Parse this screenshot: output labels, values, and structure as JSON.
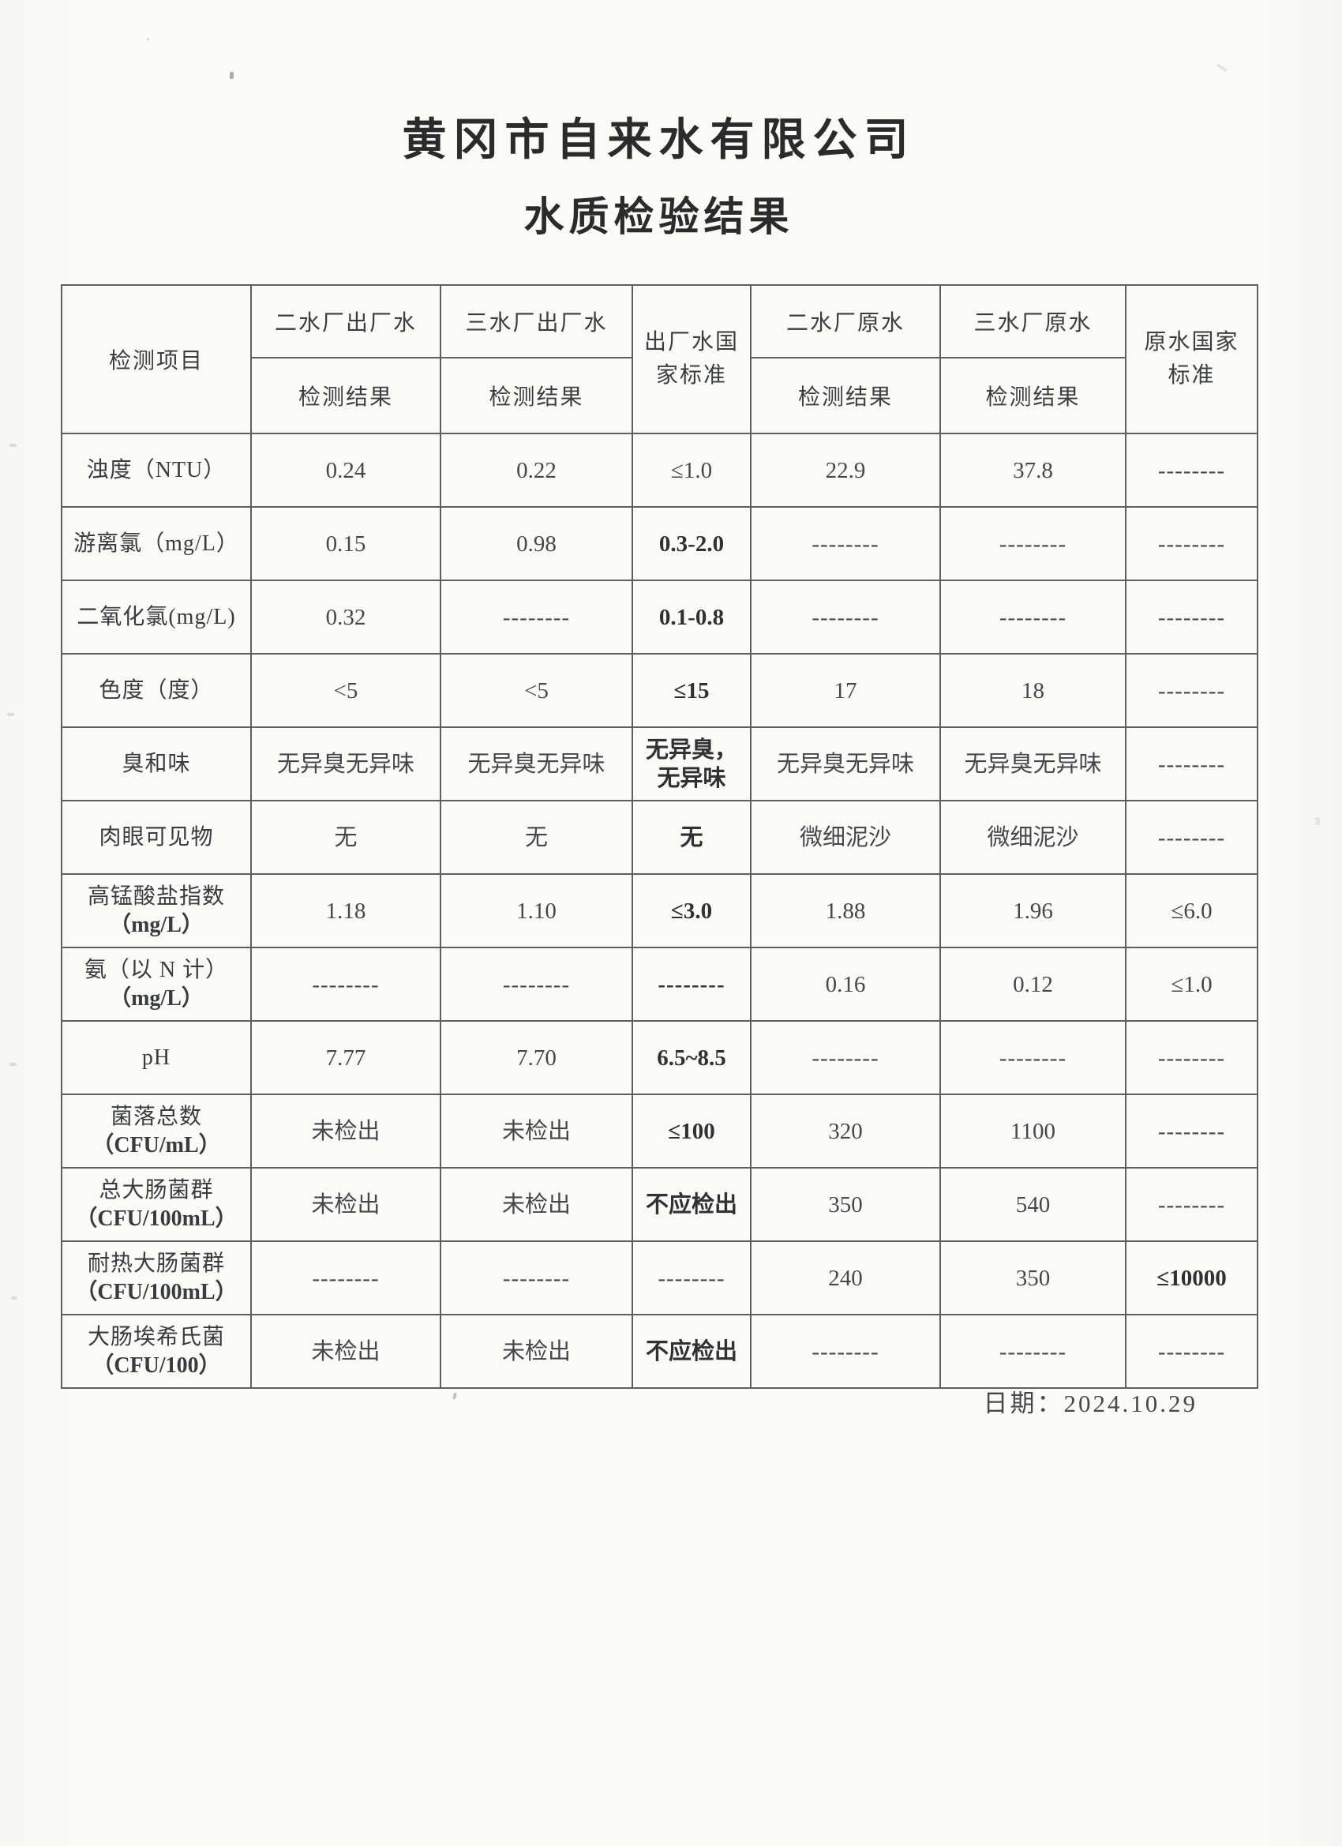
{
  "document": {
    "title_line1": "黄冈市自来水有限公司",
    "title_line2": "水质检验结果",
    "date": "日期：2024.10.29"
  },
  "table": {
    "item_header": "检测项目",
    "result_subheader": "检测结果",
    "columns": {
      "plant2_out": "二水厂出厂水",
      "plant3_out": "三水厂出厂水",
      "out_standard_lines": [
        "出厂水国",
        "家标准"
      ],
      "plant2_raw": "二水厂原水",
      "plant3_raw": "三水厂原水",
      "raw_standard_lines": [
        "原水国家",
        "标准"
      ]
    },
    "rows": [
      {
        "label_lines": [
          "浊度（NTU）"
        ],
        "cells": [
          {
            "lines": [
              "0.24"
            ],
            "bold": false
          },
          {
            "lines": [
              "0.22"
            ],
            "bold": false
          },
          {
            "lines": [
              "≤1.0"
            ],
            "bold": false
          },
          {
            "lines": [
              "22.9"
            ],
            "bold": false
          },
          {
            "lines": [
              "37.8"
            ],
            "bold": false
          },
          {
            "lines": [
              "--------"
            ],
            "bold": false
          }
        ]
      },
      {
        "label_lines": [
          "游离氯（mg/L）"
        ],
        "cells": [
          {
            "lines": [
              "0.15"
            ],
            "bold": false
          },
          {
            "lines": [
              "0.98"
            ],
            "bold": false
          },
          {
            "lines": [
              "0.3-2.0"
            ],
            "bold": true
          },
          {
            "lines": [
              "--------"
            ],
            "bold": false
          },
          {
            "lines": [
              "--------"
            ],
            "bold": false
          },
          {
            "lines": [
              "--------"
            ],
            "bold": false
          }
        ]
      },
      {
        "label_lines": [
          "二氧化氯(mg/L)"
        ],
        "cells": [
          {
            "lines": [
              "0.32"
            ],
            "bold": false
          },
          {
            "lines": [
              "--------"
            ],
            "bold": false
          },
          {
            "lines": [
              "0.1-0.8"
            ],
            "bold": true
          },
          {
            "lines": [
              "--------"
            ],
            "bold": false
          },
          {
            "lines": [
              "--------"
            ],
            "bold": false
          },
          {
            "lines": [
              "--------"
            ],
            "bold": false
          }
        ]
      },
      {
        "label_lines": [
          "色度（度）"
        ],
        "cells": [
          {
            "lines": [
              "<5"
            ],
            "bold": false
          },
          {
            "lines": [
              "<5"
            ],
            "bold": false
          },
          {
            "lines": [
              "≤15"
            ],
            "bold": true
          },
          {
            "lines": [
              "17"
            ],
            "bold": false
          },
          {
            "lines": [
              "18"
            ],
            "bold": false
          },
          {
            "lines": [
              "--------"
            ],
            "bold": false
          }
        ]
      },
      {
        "label_lines": [
          "臭和味"
        ],
        "cells": [
          {
            "lines": [
              "无异臭无异味"
            ],
            "bold": false
          },
          {
            "lines": [
              "无异臭无异味"
            ],
            "bold": false
          },
          {
            "lines": [
              "无异臭，",
              "无异味"
            ],
            "bold": true
          },
          {
            "lines": [
              "无异臭无异味"
            ],
            "bold": false
          },
          {
            "lines": [
              "无异臭无异味"
            ],
            "bold": false
          },
          {
            "lines": [
              "--------"
            ],
            "bold": false
          }
        ]
      },
      {
        "label_lines": [
          "肉眼可见物"
        ],
        "cells": [
          {
            "lines": [
              "无"
            ],
            "bold": false
          },
          {
            "lines": [
              "无"
            ],
            "bold": false
          },
          {
            "lines": [
              "无"
            ],
            "bold": true
          },
          {
            "lines": [
              "微细泥沙"
            ],
            "bold": false
          },
          {
            "lines": [
              "微细泥沙"
            ],
            "bold": false
          },
          {
            "lines": [
              "--------"
            ],
            "bold": false
          }
        ]
      },
      {
        "label_lines": [
          "高锰酸盐指数",
          "（mg/L）"
        ],
        "cells": [
          {
            "lines": [
              "1.18"
            ],
            "bold": false
          },
          {
            "lines": [
              "1.10"
            ],
            "bold": false
          },
          {
            "lines": [
              "≤3.0"
            ],
            "bold": true
          },
          {
            "lines": [
              "1.88"
            ],
            "bold": false
          },
          {
            "lines": [
              "1.96"
            ],
            "bold": false
          },
          {
            "lines": [
              "≤6.0"
            ],
            "bold": false
          }
        ]
      },
      {
        "label_lines": [
          "氨（以 N 计）",
          "（mg/L）"
        ],
        "cells": [
          {
            "lines": [
              "--------"
            ],
            "bold": false
          },
          {
            "lines": [
              "--------"
            ],
            "bold": false
          },
          {
            "lines": [
              "--------"
            ],
            "bold": true
          },
          {
            "lines": [
              "0.16"
            ],
            "bold": false
          },
          {
            "lines": [
              "0.12"
            ],
            "bold": false
          },
          {
            "lines": [
              "≤1.0"
            ],
            "bold": false
          }
        ]
      },
      {
        "label_lines": [
          "pH"
        ],
        "cells": [
          {
            "lines": [
              "7.77"
            ],
            "bold": false
          },
          {
            "lines": [
              "7.70"
            ],
            "bold": false
          },
          {
            "lines": [
              "6.5~8.5"
            ],
            "bold": true
          },
          {
            "lines": [
              "--------"
            ],
            "bold": false
          },
          {
            "lines": [
              "--------"
            ],
            "bold": false
          },
          {
            "lines": [
              "--------"
            ],
            "bold": false
          }
        ]
      },
      {
        "label_lines": [
          "菌落总数",
          "（CFU/mL）"
        ],
        "cells": [
          {
            "lines": [
              "未检出"
            ],
            "bold": false
          },
          {
            "lines": [
              "未检出"
            ],
            "bold": false
          },
          {
            "lines": [
              "≤100"
            ],
            "bold": true
          },
          {
            "lines": [
              "320"
            ],
            "bold": false
          },
          {
            "lines": [
              "1100"
            ],
            "bold": false
          },
          {
            "lines": [
              "--------"
            ],
            "bold": false
          }
        ]
      },
      {
        "label_lines": [
          "总大肠菌群",
          "（CFU/100mL）"
        ],
        "cells": [
          {
            "lines": [
              "未检出"
            ],
            "bold": false
          },
          {
            "lines": [
              "未检出"
            ],
            "bold": false
          },
          {
            "lines": [
              "不应检出"
            ],
            "bold": true
          },
          {
            "lines": [
              "350"
            ],
            "bold": false
          },
          {
            "lines": [
              "540"
            ],
            "bold": false
          },
          {
            "lines": [
              "--------"
            ],
            "bold": false
          }
        ]
      },
      {
        "label_lines": [
          "耐热大肠菌群",
          "（CFU/100mL）"
        ],
        "cells": [
          {
            "lines": [
              "--------"
            ],
            "bold": false
          },
          {
            "lines": [
              "--------"
            ],
            "bold": false
          },
          {
            "lines": [
              "--------"
            ],
            "bold": false
          },
          {
            "lines": [
              "240"
            ],
            "bold": false
          },
          {
            "lines": [
              "350"
            ],
            "bold": false
          },
          {
            "lines": [
              "≤10000"
            ],
            "bold": true
          }
        ]
      },
      {
        "label_lines": [
          "大肠埃希氏菌",
          "（CFU/100）"
        ],
        "cells": [
          {
            "lines": [
              "未检出"
            ],
            "bold": false
          },
          {
            "lines": [
              "未检出"
            ],
            "bold": false
          },
          {
            "lines": [
              "不应检出"
            ],
            "bold": true
          },
          {
            "lines": [
              "--------"
            ],
            "bold": false
          },
          {
            "lines": [
              "--------"
            ],
            "bold": false
          },
          {
            "lines": [
              "--------"
            ],
            "bold": false
          }
        ]
      }
    ]
  }
}
